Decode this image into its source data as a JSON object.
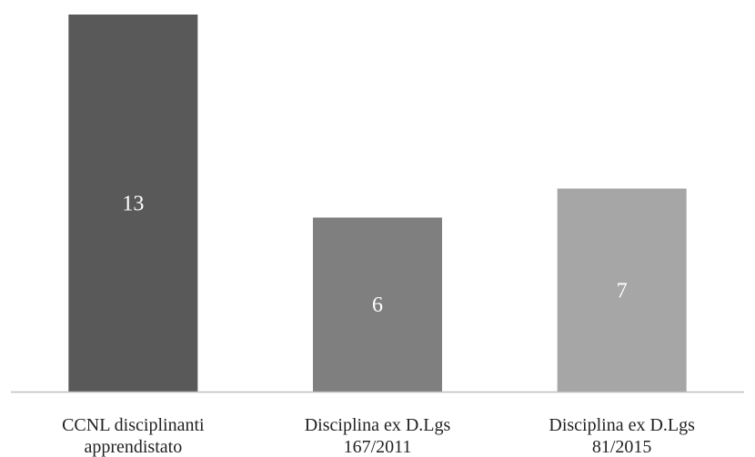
{
  "chart_data": {
    "type": "bar",
    "categories": [
      [
        "CCNL disciplinanti",
        "apprendistato"
      ],
      [
        "Disciplina ex D.Lgs",
        "167/2011"
      ],
      [
        "Disciplina ex D.Lgs",
        "81/2015"
      ]
    ],
    "values": [
      13,
      6,
      7
    ],
    "bar_colors": [
      "#595959",
      "#7f7f7f",
      "#a6a6a6"
    ],
    "value_label_color": "#ffffff",
    "axis_color": "#bfbfbf",
    "ylim": [
      0,
      13
    ],
    "title": "",
    "xlabel": "",
    "ylabel": "",
    "grid": false,
    "legend": "none",
    "data_labels": "inside-center"
  }
}
